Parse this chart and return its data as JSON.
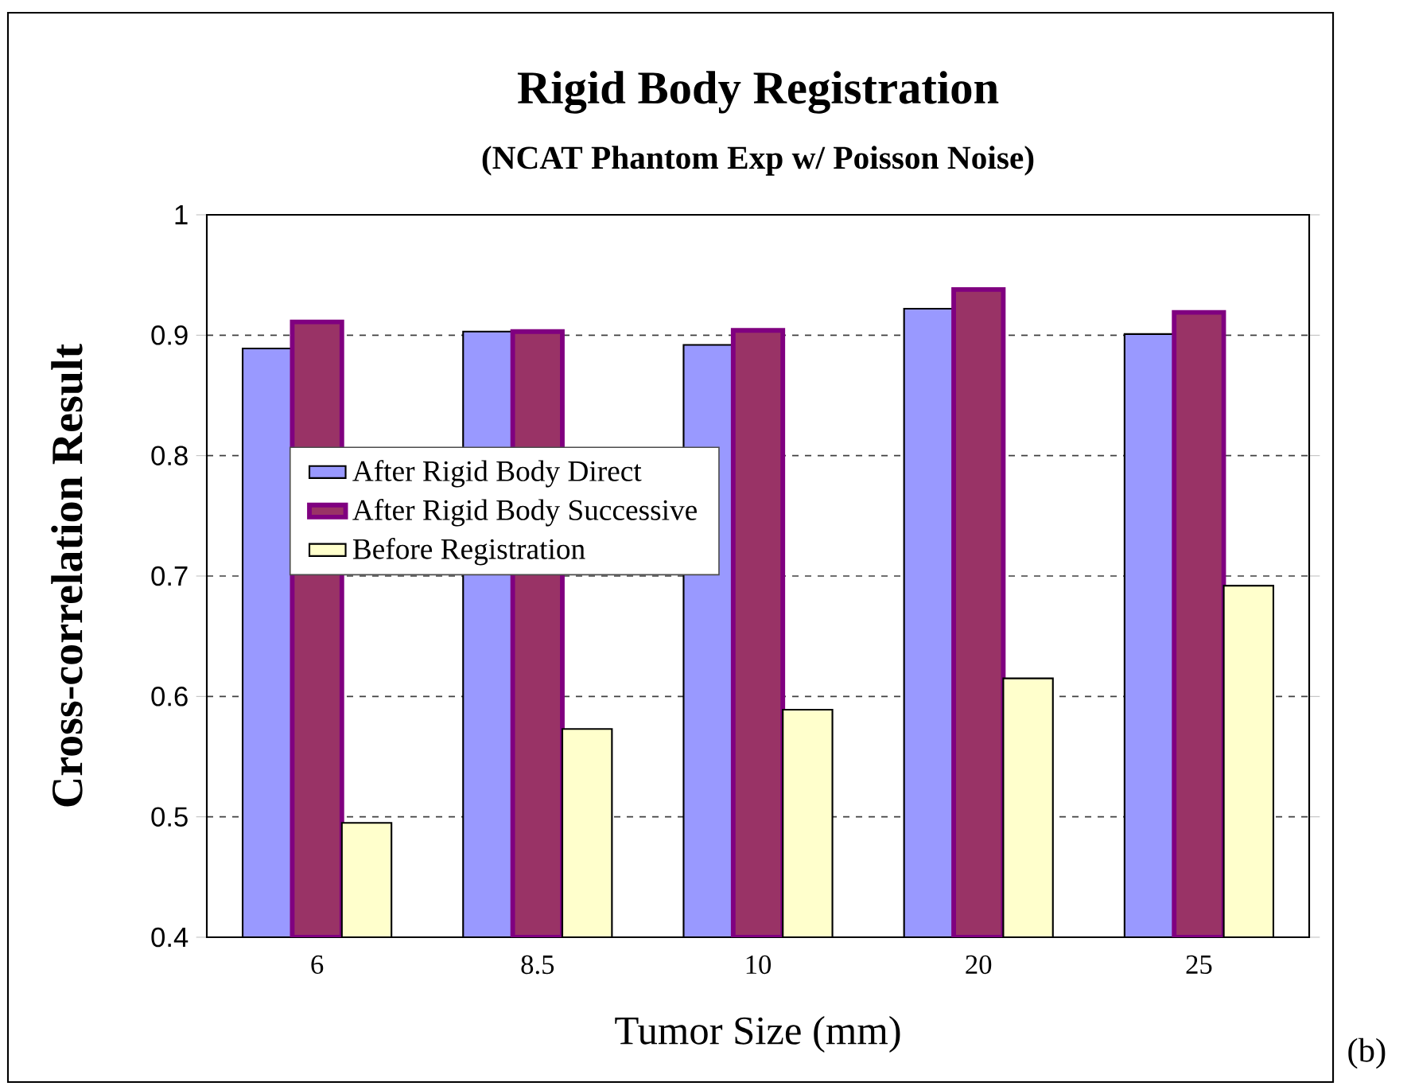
{
  "chart_data": {
    "type": "bar",
    "title": "Rigid Body Registration",
    "subtitle": "(NCAT Phantom Exp w/ Poisson Noise)",
    "xlabel": "Tumor Size (mm)",
    "ylabel": "Cross-correlation Result",
    "categories": [
      "6",
      "8.5",
      "10",
      "20",
      "25"
    ],
    "series": [
      {
        "name": "After Rigid Body Direct",
        "color": "#9999ff",
        "values": [
          0.889,
          0.903,
          0.892,
          0.922,
          0.901
        ]
      },
      {
        "name": "After Rigid Body Successive",
        "color": "#993366",
        "values": [
          0.911,
          0.903,
          0.904,
          0.938,
          0.919
        ]
      },
      {
        "name": "Before Registration",
        "color": "#ffffcc",
        "values": [
          0.495,
          0.573,
          0.589,
          0.615,
          0.692
        ]
      }
    ],
    "ylim": [
      0.4,
      1
    ],
    "yticks": [
      0.4,
      0.5,
      0.6,
      0.7,
      0.8,
      0.9,
      1
    ],
    "grid": "y",
    "legend": "left",
    "annotations": [
      "(b)"
    ]
  }
}
